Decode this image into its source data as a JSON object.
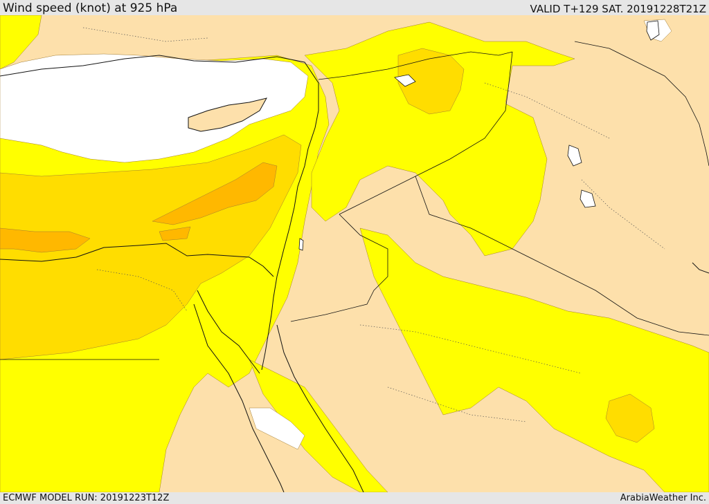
{
  "header": {
    "title": "Wind speed (knot) at 925 hPa",
    "valid": "VALID T+129 SAT. 20191228T21Z"
  },
  "footer": {
    "model_run": "ECMWF MODEL RUN: 20191223T12Z",
    "credit": "ArabiaWeather Inc."
  },
  "map": {
    "colors": {
      "calm": "#ffffff",
      "light": "#fde0ab",
      "moderate": "#ffff00",
      "fresh": "#ffdd00",
      "strong": "#ffb800"
    }
  }
}
